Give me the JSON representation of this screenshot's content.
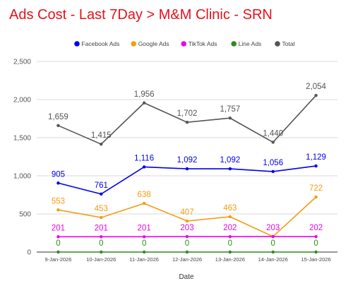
{
  "chart_data": {
    "type": "line",
    "title": "Ads Cost - Last 7Day > M&M Clinic - SRN",
    "xlabel": "Date",
    "ylabel": "",
    "categories": [
      "9-Jan-2026",
      "10-Jan-2026",
      "11-Jan-2026",
      "12-Jan-2026",
      "13-Jan-2026",
      "14-Jan-2026",
      "15-Jan-2026"
    ],
    "ylim": [
      0,
      2500
    ],
    "yticks": [
      0,
      500,
      1000,
      1500,
      2000,
      2500
    ],
    "ytick_labels": [
      "0",
      "500",
      "1,000",
      "1,500",
      "2,000",
      "2,500"
    ],
    "grid": true,
    "legend_position": "top",
    "series": [
      {
        "name": "Facebook Ads",
        "color": "#0000ee",
        "values": [
          905,
          761,
          1116,
          1092,
          1092,
          1056,
          1129
        ],
        "labels": [
          "905",
          "761",
          "1,116",
          "1,092",
          "1,092",
          "1,056",
          "1,129"
        ]
      },
      {
        "name": "Google Ads",
        "color": "#f39c12",
        "values": [
          553,
          453,
          638,
          407,
          463,
          203,
          722
        ],
        "labels": [
          "553",
          "453",
          "638",
          "407",
          "463",
          "",
          "722"
        ]
      },
      {
        "name": "TikTok Ads",
        "color": "#ee00ee",
        "values": [
          201,
          201,
          201,
          203,
          202,
          203,
          202
        ],
        "labels": [
          "201",
          "201",
          "201",
          "203",
          "202",
          "203",
          "202"
        ]
      },
      {
        "name": "Line Ads",
        "color": "#2e8b1e",
        "values": [
          0,
          0,
          0,
          0,
          0,
          0,
          0
        ],
        "labels": [
          "0",
          "0",
          "0",
          "0",
          "0",
          "0",
          "0"
        ]
      },
      {
        "name": "Total",
        "color": "#555555",
        "values": [
          1659,
          1415,
          1956,
          1702,
          1757,
          1440,
          2054
        ],
        "labels": [
          "1,659",
          "1,415",
          "1,956",
          "1,702",
          "1,757",
          "1,440",
          "2,054"
        ]
      }
    ]
  }
}
